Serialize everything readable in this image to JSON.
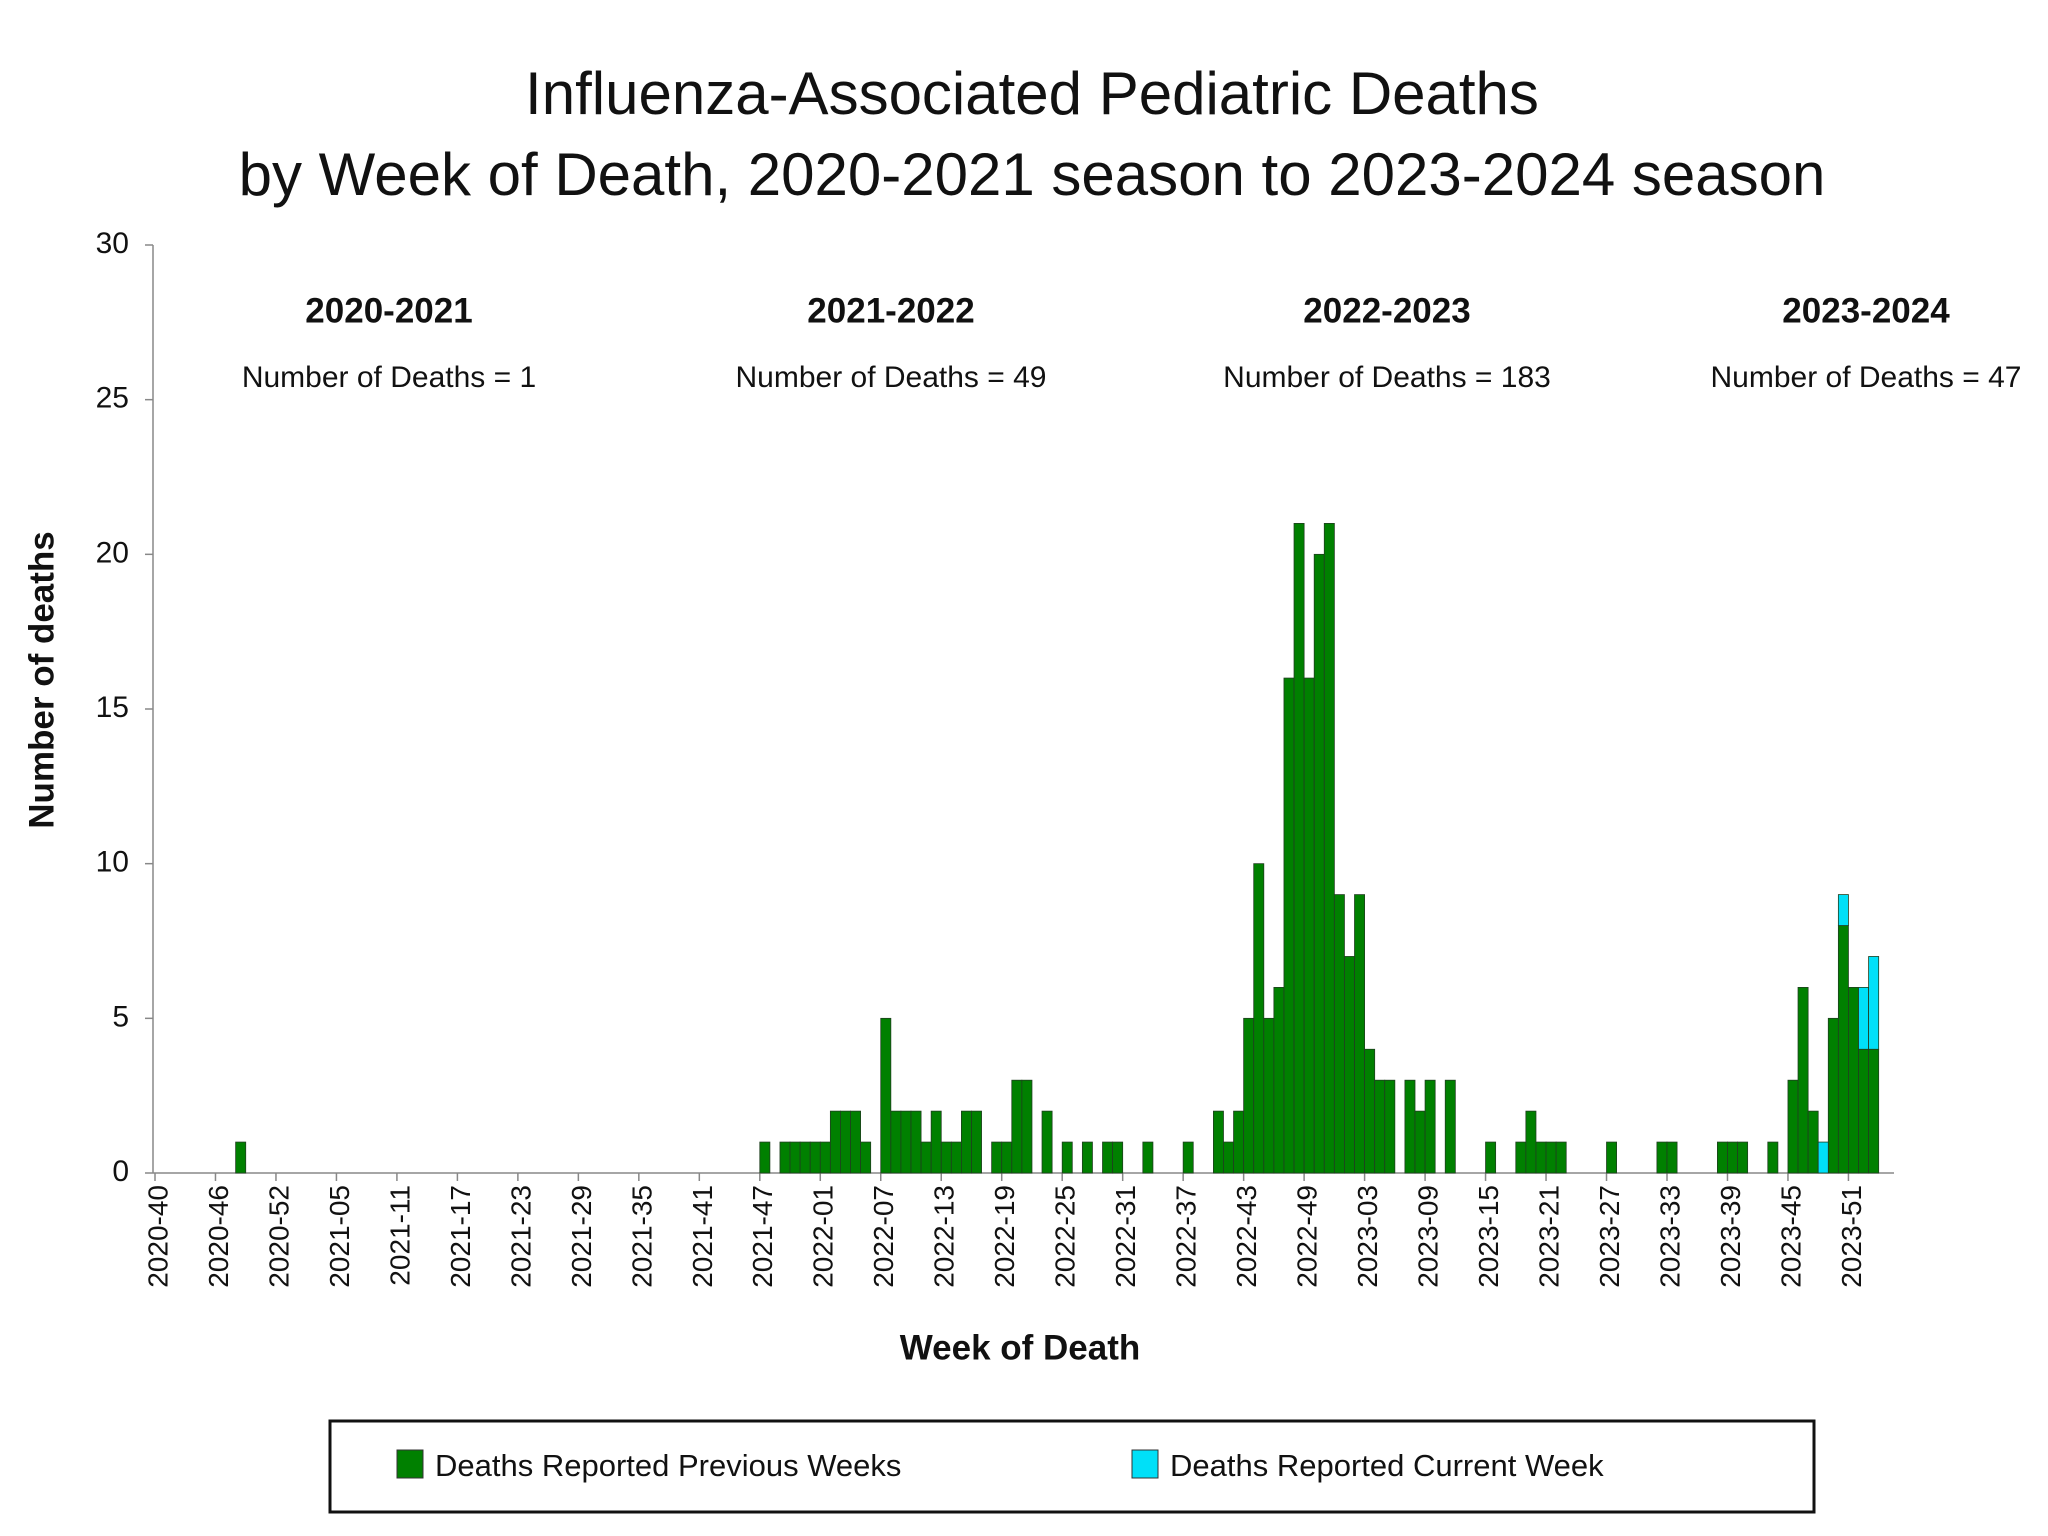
{
  "chart_data": {
    "type": "bar",
    "stacked": true,
    "title": [
      "Influenza-Associated Pediatric Deaths",
      "by Week of Death, 2020-2021 season to 2023-2024 season"
    ],
    "x_label": "Week of Death",
    "y_label": "Number of deaths",
    "seasons": [
      {
        "label": "2020-2021",
        "text": "Number of Deaths = 1"
      },
      {
        "label": "2021-2022",
        "text": "Number of Deaths = 49"
      },
      {
        "label": "2022-2023",
        "text": "Number of Deaths = 183"
      },
      {
        "label": "2023-2024",
        "text": "Number of Deaths = 47"
      }
    ],
    "categories": [
      "2020-40",
      null,
      null,
      null,
      null,
      null,
      "2020-46",
      null,
      null,
      null,
      null,
      null,
      "2020-52",
      null,
      null,
      null,
      null,
      null,
      "2021-05",
      null,
      null,
      null,
      null,
      null,
      "2021-11",
      null,
      null,
      null,
      null,
      null,
      "2021-17",
      null,
      null,
      null,
      null,
      null,
      "2021-23",
      null,
      null,
      null,
      null,
      null,
      "2021-29",
      null,
      null,
      null,
      null,
      null,
      "2021-35",
      null,
      null,
      null,
      null,
      null,
      "2021-41",
      null,
      null,
      null,
      null,
      null,
      "2021-47",
      null,
      null,
      null,
      null,
      null,
      "2022-01",
      null,
      null,
      null,
      null,
      null,
      "2022-07",
      null,
      null,
      null,
      null,
      null,
      "2022-13",
      null,
      null,
      null,
      null,
      null,
      "2022-19",
      null,
      null,
      null,
      null,
      null,
      "2022-25",
      null,
      null,
      null,
      null,
      null,
      "2022-31",
      null,
      null,
      null,
      null,
      null,
      "2022-37",
      null,
      null,
      null,
      null,
      null,
      "2022-43",
      null,
      null,
      null,
      null,
      null,
      "2022-49",
      null,
      null,
      null,
      null,
      null,
      "2023-03",
      null,
      null,
      null,
      null,
      null,
      "2023-09",
      null,
      null,
      null,
      null,
      null,
      "2023-15",
      null,
      null,
      null,
      null,
      null,
      "2023-21",
      null,
      null,
      null,
      null,
      null,
      "2023-27",
      null,
      null,
      null,
      null,
      null,
      "2023-33",
      null,
      null,
      null,
      null,
      null,
      "2023-39",
      null,
      null,
      null,
      null,
      null,
      "2023-45",
      null,
      null,
      null,
      null,
      null,
      "2023-51",
      null,
      null
    ],
    "series": [
      {
        "name": "Deaths Reported Previous Weeks",
        "color": "#008000",
        "values": [
          0,
          0,
          0,
          0,
          0,
          0,
          0,
          0,
          1,
          0,
          0,
          0,
          0,
          0,
          0,
          0,
          0,
          0,
          0,
          0,
          0,
          0,
          0,
          0,
          0,
          0,
          0,
          0,
          0,
          0,
          0,
          0,
          0,
          0,
          0,
          0,
          0,
          0,
          0,
          0,
          0,
          0,
          0,
          0,
          0,
          0,
          0,
          0,
          0,
          0,
          0,
          0,
          0,
          0,
          0,
          0,
          0,
          0,
          0,
          0,
          1,
          0,
          1,
          1,
          1,
          1,
          1,
          2,
          2,
          2,
          1,
          0,
          5,
          2,
          2,
          2,
          1,
          2,
          1,
          1,
          2,
          2,
          0,
          1,
          1,
          3,
          3,
          0,
          2,
          0,
          1,
          0,
          1,
          0,
          1,
          1,
          0,
          0,
          1,
          0,
          0,
          0,
          1,
          0,
          0,
          2,
          1,
          2,
          5,
          10,
          5,
          6,
          16,
          21,
          16,
          20,
          21,
          9,
          7,
          9,
          4,
          3,
          3,
          0,
          3,
          2,
          3,
          0,
          3,
          0,
          0,
          0,
          1,
          0,
          0,
          1,
          2,
          1,
          1,
          1,
          0,
          0,
          0,
          0,
          1,
          0,
          0,
          0,
          0,
          1,
          1,
          0,
          0,
          0,
          0,
          1,
          1,
          1,
          0,
          0,
          1,
          0,
          3,
          6,
          2,
          0,
          5,
          8,
          6,
          4,
          4
        ]
      },
      {
        "name": "Deaths Reported Current Week",
        "color": "#00e0f8",
        "values": [
          0,
          0,
          0,
          0,
          0,
          0,
          0,
          0,
          0,
          0,
          0,
          0,
          0,
          0,
          0,
          0,
          0,
          0,
          0,
          0,
          0,
          0,
          0,
          0,
          0,
          0,
          0,
          0,
          0,
          0,
          0,
          0,
          0,
          0,
          0,
          0,
          0,
          0,
          0,
          0,
          0,
          0,
          0,
          0,
          0,
          0,
          0,
          0,
          0,
          0,
          0,
          0,
          0,
          0,
          0,
          0,
          0,
          0,
          0,
          0,
          0,
          0,
          0,
          0,
          0,
          0,
          0,
          0,
          0,
          0,
          0,
          0,
          0,
          0,
          0,
          0,
          0,
          0,
          0,
          0,
          0,
          0,
          0,
          0,
          0,
          0,
          0,
          0,
          0,
          0,
          0,
          0,
          0,
          0,
          0,
          0,
          0,
          0,
          0,
          0,
          0,
          0,
          0,
          0,
          0,
          0,
          0,
          0,
          0,
          0,
          0,
          0,
          0,
          0,
          0,
          0,
          0,
          0,
          0,
          0,
          0,
          0,
          0,
          0,
          0,
          0,
          0,
          0,
          0,
          0,
          0,
          0,
          0,
          0,
          0,
          0,
          0,
          0,
          0,
          0,
          0,
          0,
          0,
          0,
          0,
          0,
          0,
          0,
          0,
          0,
          0,
          0,
          0,
          0,
          0,
          0,
          0,
          0,
          0,
          0,
          0,
          0,
          0,
          0,
          0,
          1,
          0,
          1,
          0,
          2,
          3
        ]
      }
    ],
    "ylim": [
      0,
      30
    ],
    "yticks": [
      0,
      5,
      10,
      15,
      20,
      25,
      30
    ],
    "grid": false,
    "legend": "bottom"
  }
}
